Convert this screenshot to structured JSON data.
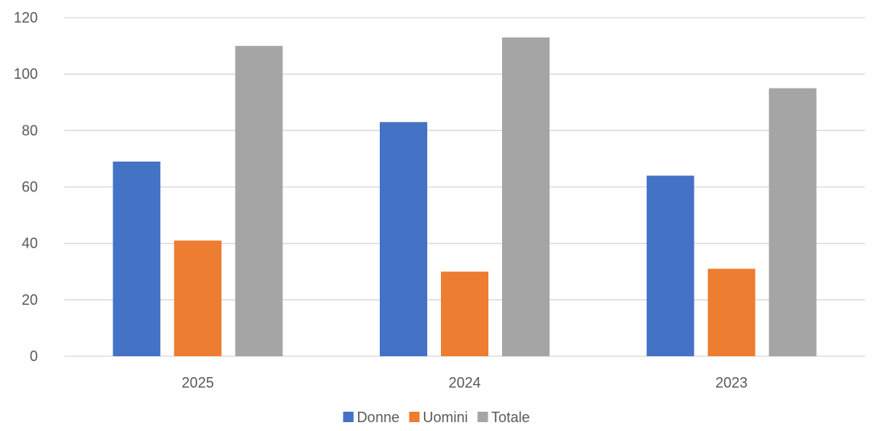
{
  "chart_data": {
    "type": "bar",
    "categories": [
      "2025",
      "2024",
      "2023"
    ],
    "series": [
      {
        "name": "Donne",
        "values": [
          69,
          83,
          64
        ],
        "color": "#4472C4"
      },
      {
        "name": "Uomini",
        "values": [
          41,
          30,
          31
        ],
        "color": "#ED7D31"
      },
      {
        "name": "Totale",
        "values": [
          110,
          113,
          95
        ],
        "color": "#A5A5A5"
      }
    ],
    "title": "",
    "xlabel": "",
    "ylabel": "",
    "ylim": [
      0,
      120
    ],
    "yticks": [
      "0",
      "20",
      "40",
      "60",
      "80",
      "100",
      "120"
    ],
    "grid": true,
    "legend_position": "bottom"
  }
}
